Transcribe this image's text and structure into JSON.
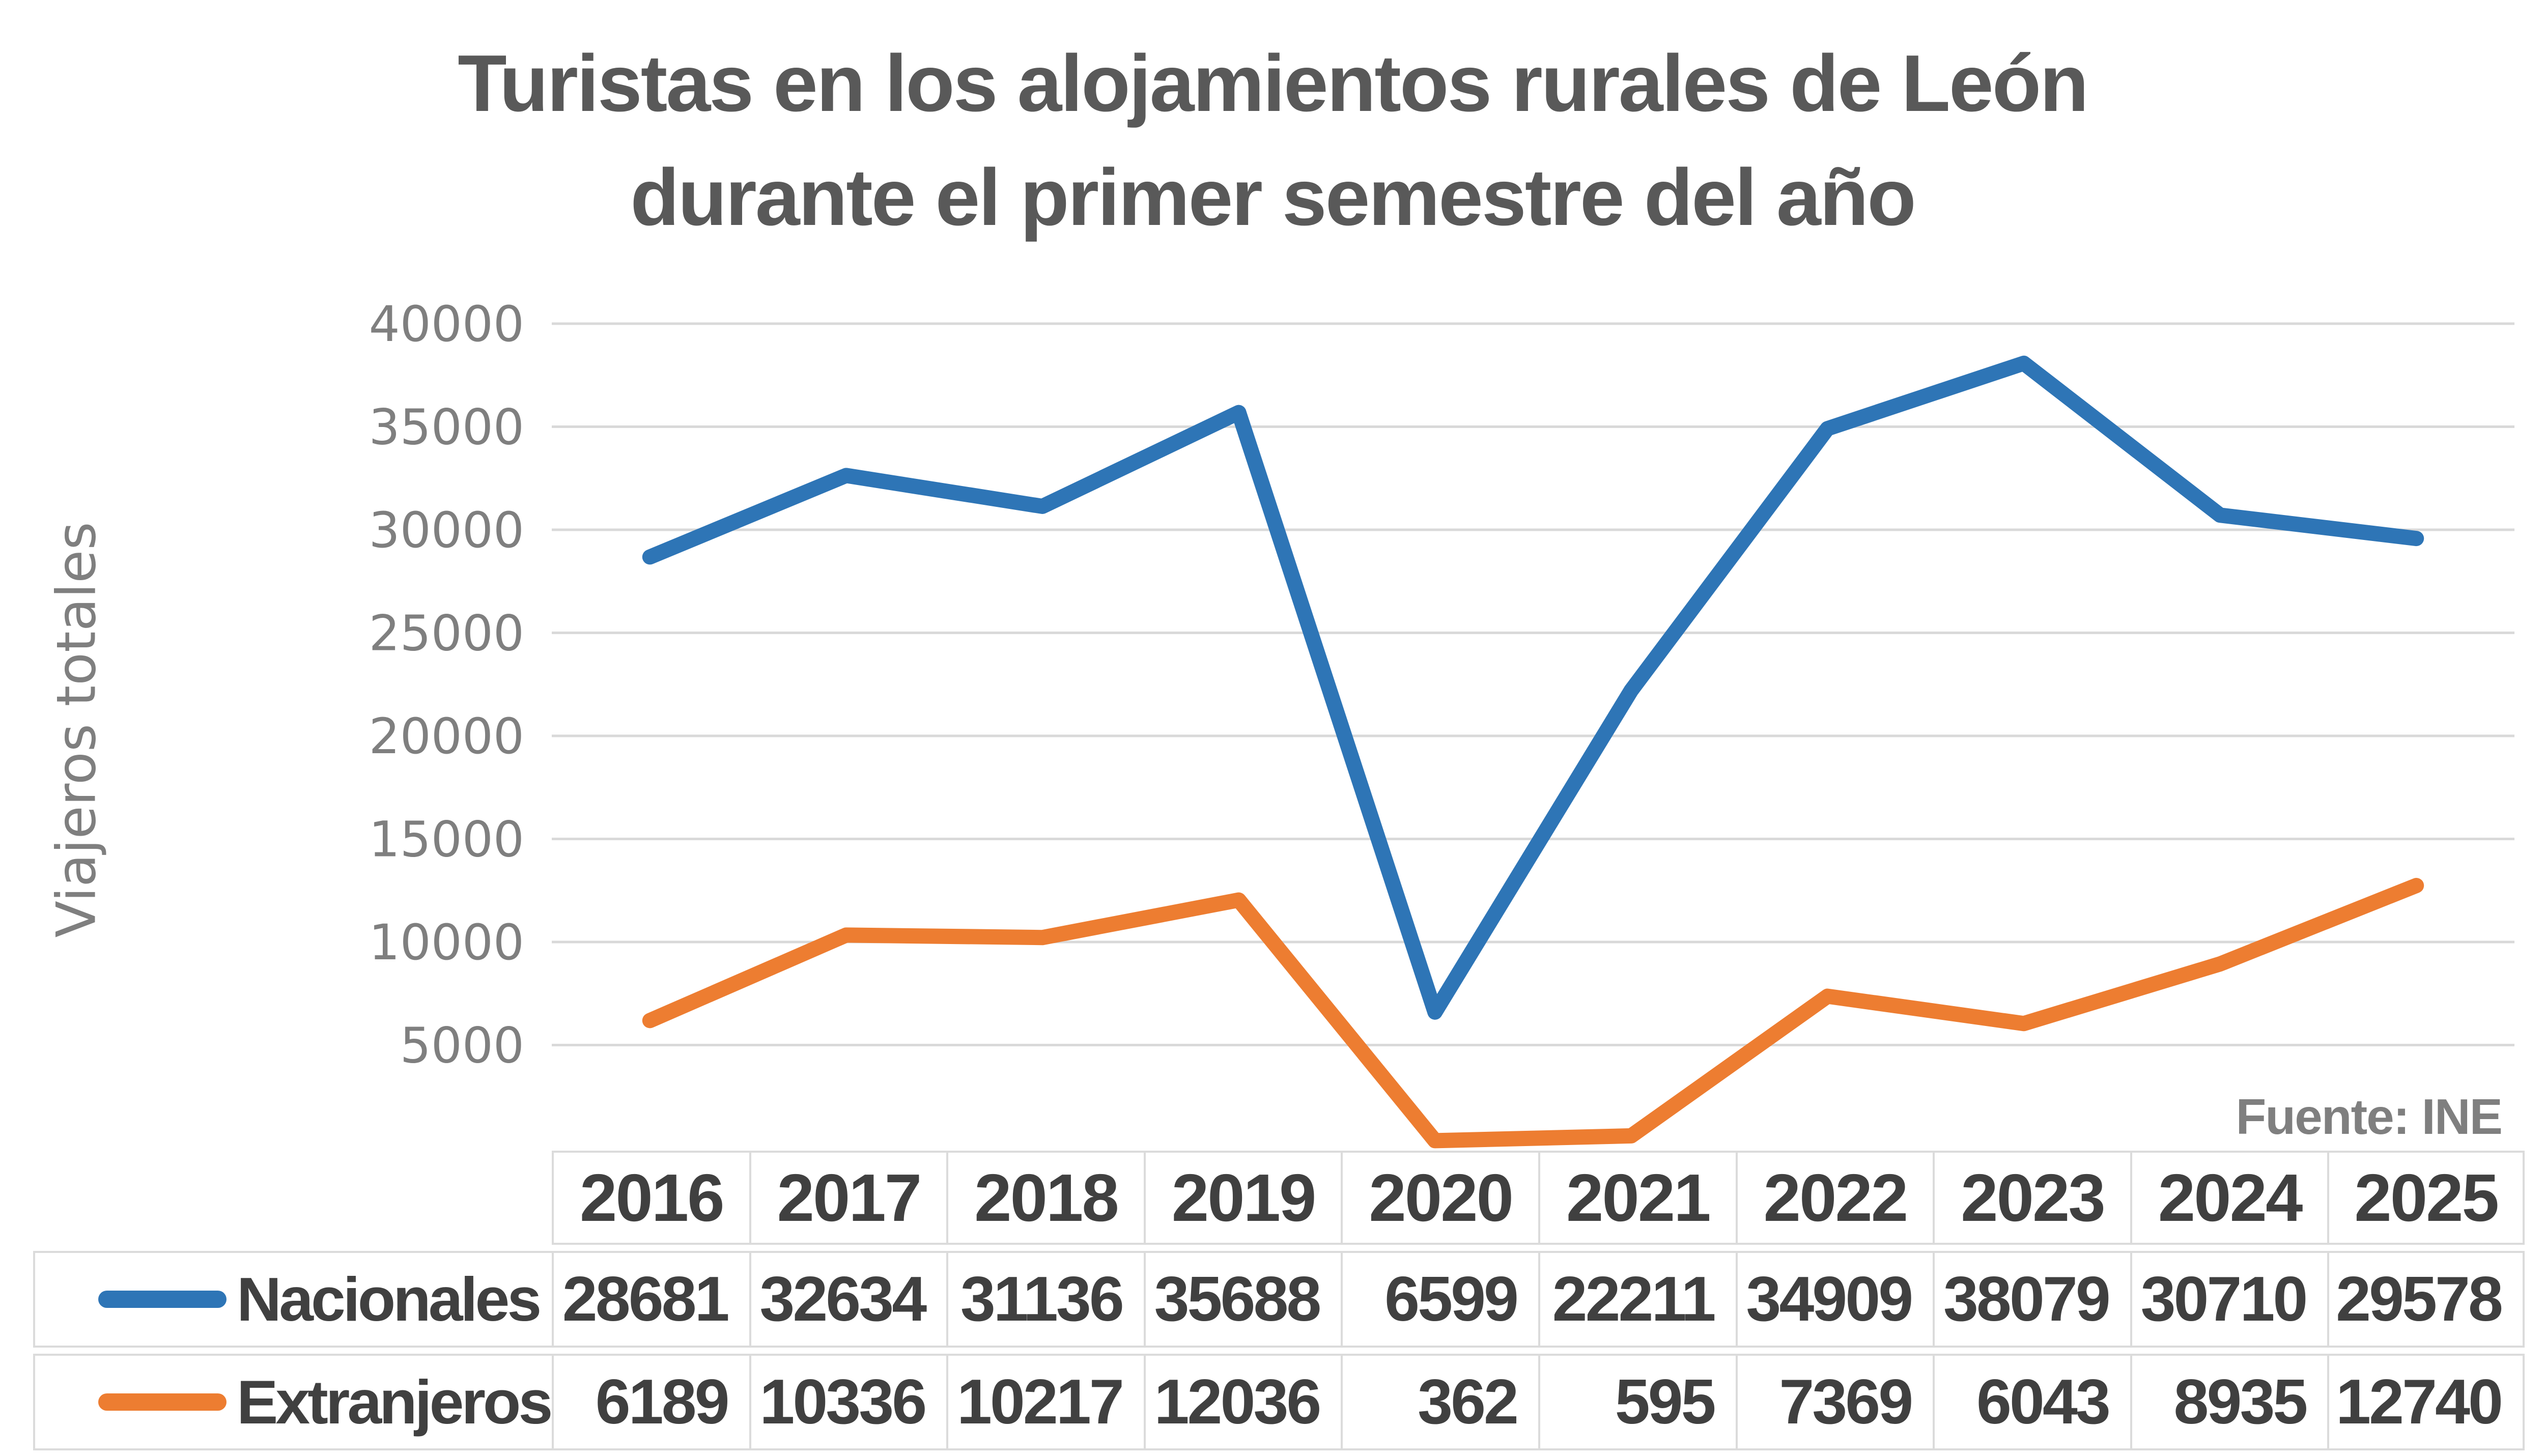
{
  "title": {
    "line1": "Turistas en los alojamientos rurales de León",
    "line2": "durante el primer semestre del año"
  },
  "source_note": "Fuente: INE",
  "y_axis": {
    "label": "Viajeros totales",
    "min": 0,
    "max": 40000,
    "tick_step": 5000
  },
  "colors": {
    "nacionales_line": "#2E75B6",
    "extranjeros_line": "#ED7D31",
    "title_text": "#595959",
    "axis_text": "#7F7F7F",
    "table_text": "#404040",
    "gridline": "#D9D9D9",
    "table_border": "#DBDBDB"
  },
  "chart_data": {
    "type": "line",
    "title": "Turistas en los alojamientos rurales de León durante el primer semestre del año",
    "xlabel": "",
    "ylabel": "Viajeros totales",
    "categories": [
      "2016",
      "2017",
      "2018",
      "2019",
      "2020",
      "2021",
      "2022",
      "2023",
      "2024",
      "2025"
    ],
    "series": [
      {
        "name": "Nacionales",
        "color": "#2E75B6",
        "values": [
          28681,
          32634,
          31136,
          35688,
          6599,
          22211,
          34909,
          38079,
          30710,
          29578
        ]
      },
      {
        "name": "Extranjeros",
        "color": "#ED7D31",
        "values": [
          6189,
          10336,
          10217,
          12036,
          362,
          595,
          7369,
          6043,
          8935,
          12740
        ]
      }
    ],
    "ylim": [
      0,
      40000
    ],
    "yticks": [
      5000,
      10000,
      15000,
      20000,
      25000,
      30000,
      35000,
      40000
    ],
    "grid": true,
    "legend_position": "table-left",
    "annotation": "Fuente: INE"
  }
}
